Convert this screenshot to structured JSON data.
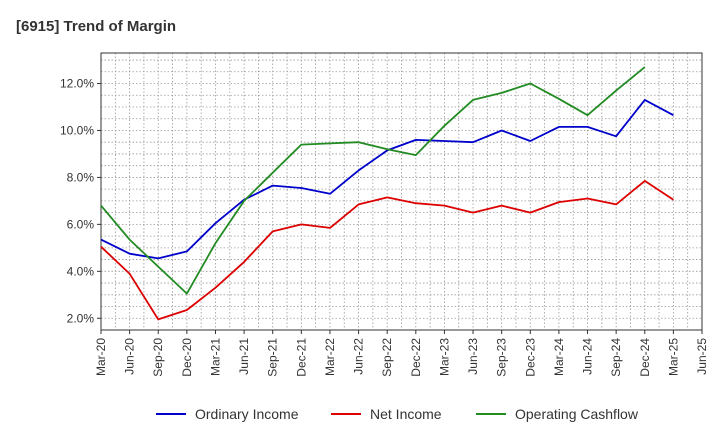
{
  "chart_data": {
    "type": "line",
    "title": "[6915]  Trend of Margin",
    "categories": [
      "Mar-20",
      "Jun-20",
      "Sep-20",
      "Dec-20",
      "Mar-21",
      "Jun-21",
      "Sep-21",
      "Dec-21",
      "Mar-22",
      "Jun-22",
      "Sep-22",
      "Dec-22",
      "Mar-23",
      "Jun-23",
      "Sep-23",
      "Dec-23",
      "Mar-24",
      "Jun-24",
      "Sep-24",
      "Dec-24",
      "Mar-25",
      "Jun-25"
    ],
    "ylim": [
      1.5,
      13.3
    ],
    "yticks": [
      2.0,
      4.0,
      6.0,
      8.0,
      10.0,
      12.0
    ],
    "ytick_labels": [
      "2.0%",
      "4.0%",
      "6.0%",
      "8.0%",
      "10.0%",
      "12.0%"
    ],
    "grid": true,
    "legend_position": "bottom",
    "series": [
      {
        "name": "Ordinary Income",
        "color": "#0000cc",
        "values": [
          5.35,
          4.75,
          4.55,
          4.85,
          6.05,
          7.05,
          7.65,
          7.55,
          7.3,
          8.3,
          9.15,
          9.6,
          9.55,
          9.5,
          10.0,
          9.55,
          10.15,
          10.15,
          9.75,
          11.3,
          10.65,
          null
        ]
      },
      {
        "name": "Net Income",
        "color": "#dd0000",
        "values": [
          5.05,
          3.9,
          1.95,
          2.35,
          3.3,
          4.4,
          5.7,
          6.0,
          5.85,
          6.85,
          7.15,
          6.9,
          6.8,
          6.5,
          6.8,
          6.5,
          6.95,
          7.1,
          6.85,
          7.85,
          7.05,
          null
        ]
      },
      {
        "name": "Operating Cashflow",
        "color": "#228b22",
        "values": [
          6.8,
          5.35,
          4.2,
          3.05,
          5.2,
          7.0,
          8.2,
          9.4,
          9.45,
          9.5,
          9.2,
          8.95,
          10.2,
          11.3,
          11.6,
          12.0,
          11.35,
          10.65,
          11.7,
          12.7,
          null,
          null
        ]
      }
    ]
  }
}
